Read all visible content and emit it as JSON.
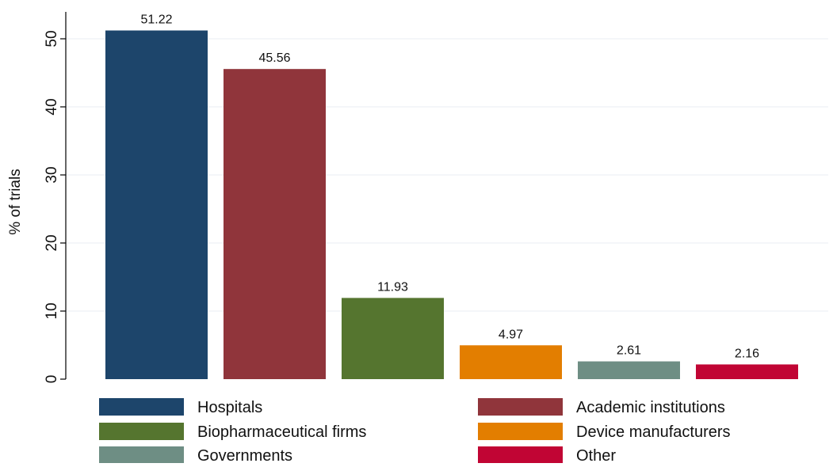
{
  "chart_data": {
    "type": "bar",
    "title": "",
    "xlabel": "",
    "ylabel": "% of trials",
    "ylim": [
      0,
      53
    ],
    "yticks": [
      0,
      10,
      20,
      30,
      40,
      50
    ],
    "grid": true,
    "legend_position": "bottom",
    "categories": [
      "Hospitals",
      "Academic institutions",
      "Biopharmaceutical firms",
      "Device manufacturers",
      "Governments",
      "Other"
    ],
    "values": [
      51.22,
      45.56,
      11.93,
      4.97,
      2.61,
      2.16
    ],
    "value_labels": [
      "51.22",
      "45.56",
      "11.93",
      "4.97",
      "2.61",
      "2.16"
    ],
    "colors": [
      "#1d456b",
      "#90353b",
      "#55752f",
      "#e37e00",
      "#6e8e84",
      "#c10534"
    ]
  }
}
